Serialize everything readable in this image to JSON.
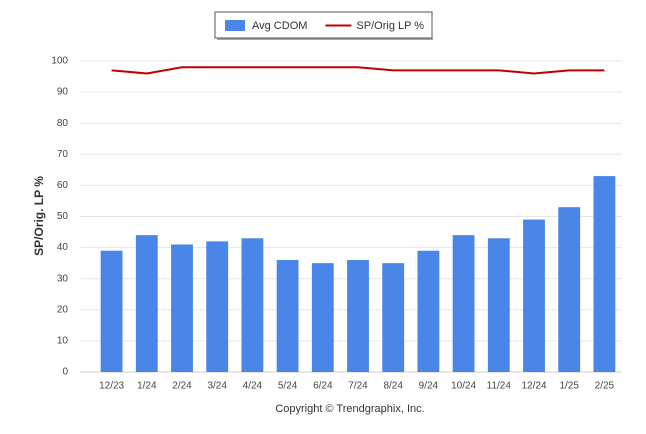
{
  "chart_data": {
    "type": "bar",
    "y_label": "SP/Orig. LP %",
    "footer": "Copyright © Trendgraphix, Inc.",
    "categories": [
      "12/23",
      "1/24",
      "2/24",
      "3/24",
      "4/24",
      "5/24",
      "6/24",
      "7/24",
      "8/24",
      "9/24",
      "10/24",
      "11/24",
      "12/24",
      "1/25",
      "2/25"
    ],
    "series": [
      {
        "name": "Avg CDOM",
        "type": "bar",
        "color": "#4a86e8",
        "values": [
          39,
          44,
          41,
          42,
          43,
          36,
          35,
          36,
          35,
          39,
          44,
          43,
          49,
          53,
          63
        ]
      },
      {
        "name": "SP/Orig LP %",
        "type": "line",
        "color": "#c00000",
        "values": [
          97,
          96,
          98,
          98,
          98,
          98,
          98,
          98,
          97,
          97,
          97,
          97,
          96,
          97,
          97
        ]
      }
    ],
    "ylim": [
      0,
      100
    ],
    "yticks": [
      0,
      10,
      20,
      30,
      40,
      50,
      60,
      70,
      80,
      90,
      100
    ],
    "grid": true,
    "legend": "top"
  }
}
